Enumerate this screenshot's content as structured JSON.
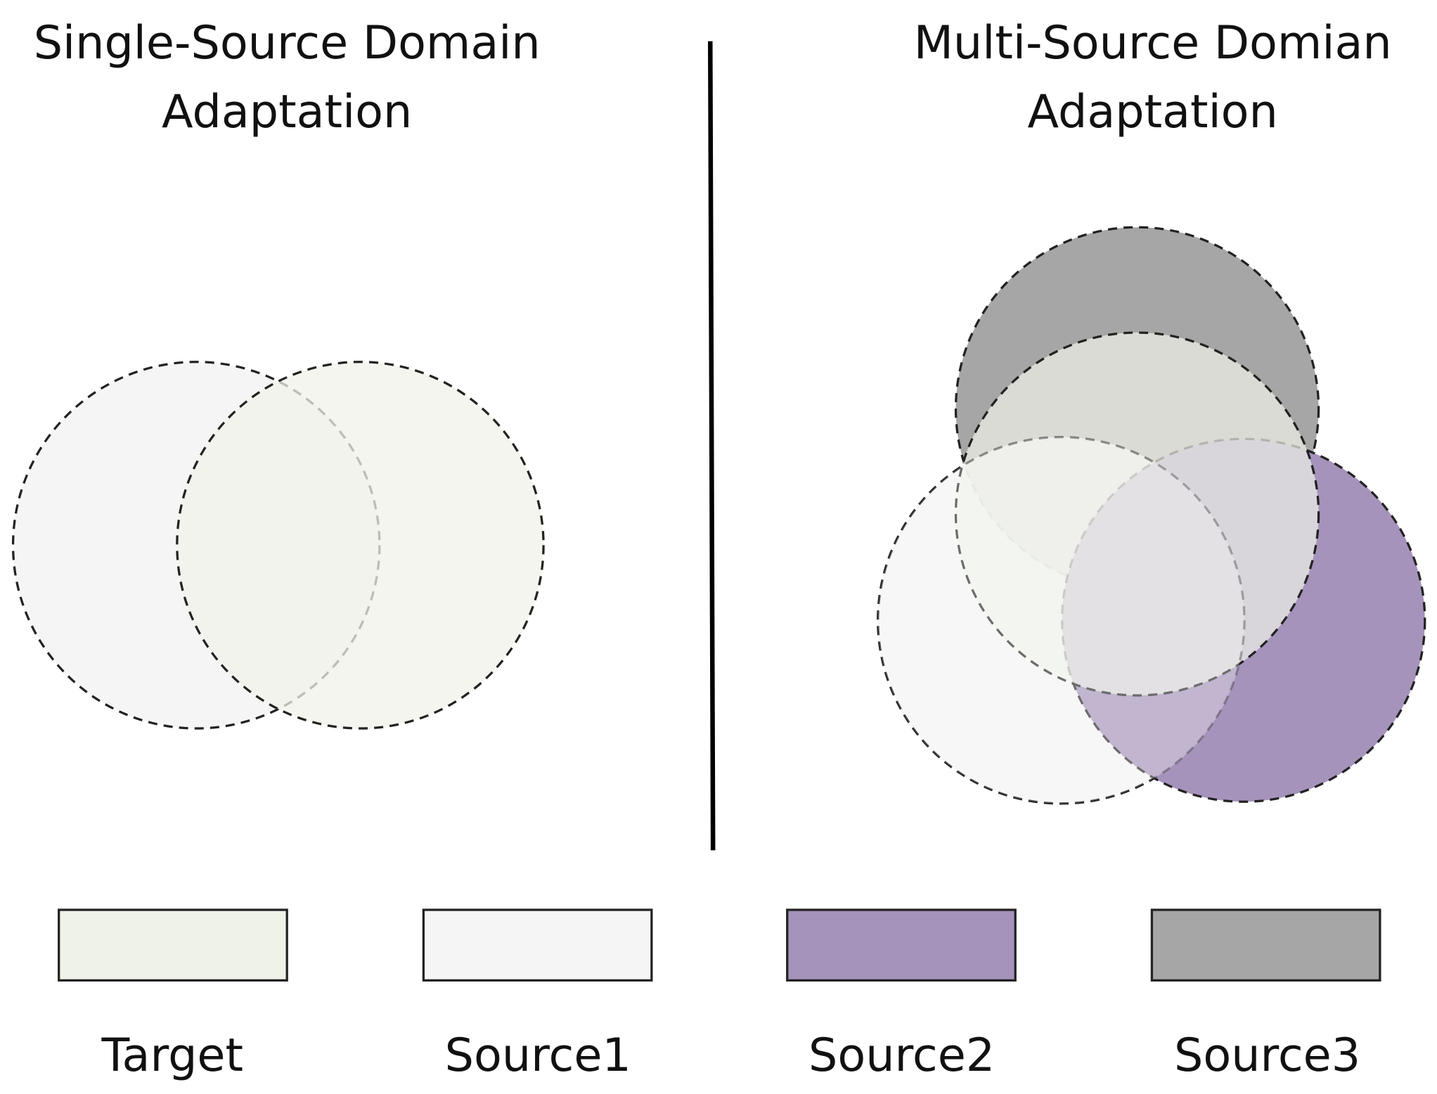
{
  "left_title": {
    "line1": "Single-Source Domain",
    "line2": "Adaptation"
  },
  "right_title": {
    "line1": "Multi-Source Domian",
    "line2": "Adaptation"
  },
  "legend": [
    "Target",
    "Source1",
    "Source2",
    "Source3"
  ]
}
